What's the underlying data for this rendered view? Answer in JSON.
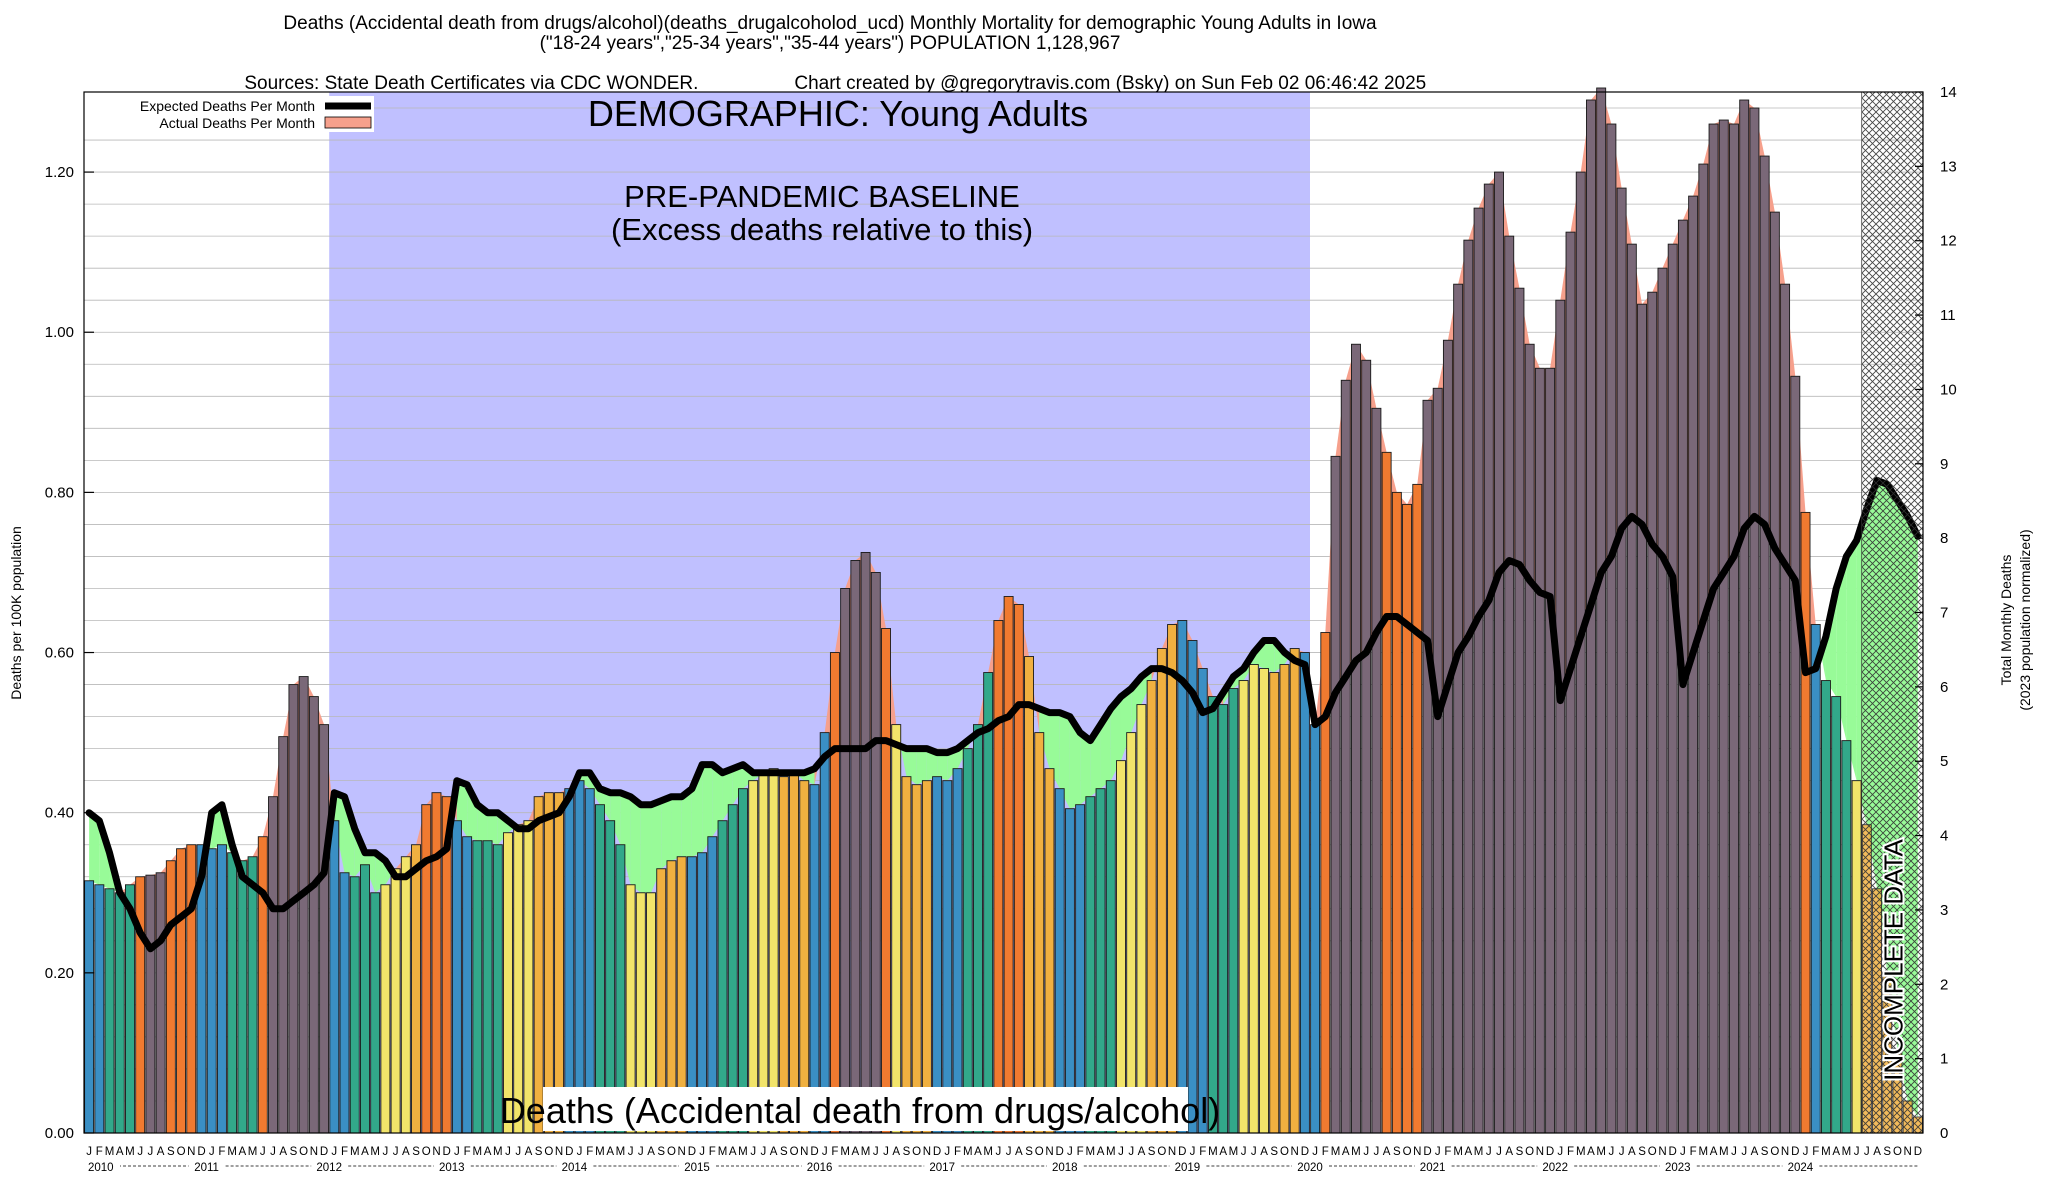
{
  "header": {
    "title": "Deaths (Accidental death from drugs/alcohol)(deaths_drugalcoholod_ucd) Monthly Mortality for demographic Young Adults in Iowa",
    "subtitle": "(\"18-24 years\",\"25-34 years\",\"35-44 years\") POPULATION 1,128,967",
    "sources": "Sources: State Death Certificates via CDC WONDER.",
    "credit": "Chart created by @gregorytravis.com (Bsky) on Sun Feb 02 06:46:42 2025"
  },
  "colors": {
    "baseline_band": "#c0c0ff",
    "excess_fill": "#f6a08c",
    "deficit_fill": "#98fb98",
    "expected_line": "#000000",
    "bar_winter": "#3a8fc4",
    "bar_spring": "#32a88a",
    "bar_summer": "#f2e46a",
    "bar_fall": "#f0b040",
    "bar_high": "#f07a30",
    "bar_peak": "#7a6878"
  },
  "chart_data": {
    "type": "bar",
    "title": "Deaths (Accidental death from drugs/alcohol)(deaths_drugalcoholod_ucd) Monthly Mortality for demographic Young Adults in Iowa",
    "ylabel": "Deaths per 100K population",
    "ylabel_right": "Total Monthly Deaths",
    "ylabel_right_sub": "(2023 population normalized)",
    "ylim": [
      0,
      1.3
    ],
    "ylim_right": [
      0,
      14
    ],
    "y_ticks": [
      "0.00",
      "0.20",
      "0.40",
      "0.60",
      "0.80",
      "1.00",
      "1.20"
    ],
    "y_ticks_right": [
      "0",
      "1",
      "2",
      "3",
      "4",
      "5",
      "6",
      "7",
      "8",
      "9",
      "10",
      "11",
      "12",
      "13",
      "14"
    ],
    "grid": true,
    "legend_position": "top-left",
    "legend": [
      "Expected Deaths Per Month",
      "Actual Deaths Per Month"
    ],
    "month_letters": [
      "J",
      "F",
      "M",
      "A",
      "M",
      "J",
      "J",
      "A",
      "S",
      "O",
      "N",
      "D"
    ],
    "years": [
      "2010",
      "2011",
      "2012",
      "2013",
      "2014",
      "2015",
      "2016",
      "2017",
      "2018",
      "2019",
      "2020",
      "2021",
      "2022",
      "2023",
      "2024"
    ],
    "start": "2010-01",
    "baseline_period": [
      "2012-01",
      "2019-12"
    ],
    "incomplete_period": [
      "2024-07",
      "2024-12"
    ],
    "annotations": {
      "demographic": "DEMOGRAPHIC: Young Adults",
      "baseline_line1": "PRE-PANDEMIC BASELINE",
      "baseline_line2": "(Excess deaths relative to this)",
      "incomplete": "INCOMPLETE DATA",
      "bottom_label": "Deaths (Accidental death from drugs/alcohol)"
    },
    "series": [
      {
        "name": "Actual Deaths Per Month",
        "values": [
          0.315,
          0.31,
          0.305,
          0.3,
          0.31,
          0.32,
          0.322,
          0.325,
          0.34,
          0.355,
          0.36,
          0.36,
          0.355,
          0.36,
          0.35,
          0.34,
          0.345,
          0.37,
          0.42,
          0.495,
          0.56,
          0.57,
          0.545,
          0.51,
          0.39,
          0.325,
          0.32,
          0.335,
          0.3,
          0.31,
          0.33,
          0.345,
          0.36,
          0.41,
          0.425,
          0.42,
          0.39,
          0.37,
          0.365,
          0.365,
          0.36,
          0.375,
          0.385,
          0.39,
          0.42,
          0.425,
          0.425,
          0.43,
          0.44,
          0.43,
          0.41,
          0.39,
          0.36,
          0.31,
          0.3,
          0.3,
          0.33,
          0.34,
          0.345,
          0.345,
          0.35,
          0.37,
          0.39,
          0.41,
          0.43,
          0.44,
          0.45,
          0.455,
          0.445,
          0.45,
          0.44,
          0.435,
          0.5,
          0.6,
          0.68,
          0.715,
          0.725,
          0.7,
          0.63,
          0.51,
          0.445,
          0.435,
          0.44,
          0.445,
          0.44,
          0.455,
          0.48,
          0.51,
          0.575,
          0.64,
          0.67,
          0.66,
          0.595,
          0.5,
          0.455,
          0.43,
          0.405,
          0.41,
          0.42,
          0.43,
          0.44,
          0.465,
          0.5,
          0.535,
          0.565,
          0.605,
          0.635,
          0.64,
          0.615,
          0.58,
          0.545,
          0.535,
          0.555,
          0.565,
          0.585,
          0.58,
          0.575,
          0.585,
          0.605,
          0.6,
          0.51,
          0.625,
          0.845,
          0.94,
          0.985,
          0.965,
          0.905,
          0.85,
          0.8,
          0.785,
          0.81,
          0.915,
          0.93,
          0.99,
          1.06,
          1.115,
          1.155,
          1.185,
          1.2,
          1.12,
          1.055,
          0.985,
          0.955,
          0.955,
          1.04,
          1.125,
          1.2,
          1.29,
          1.305,
          1.26,
          1.18,
          1.11,
          1.035,
          1.05,
          1.08,
          1.11,
          1.14,
          1.17,
          1.21,
          1.26,
          1.265,
          1.26,
          1.29,
          1.28,
          1.22,
          1.15,
          1.06,
          0.945,
          0.775,
          0.635,
          0.565,
          0.545,
          0.49,
          0.44,
          0.385,
          0.305,
          0.2,
          0.105,
          0.04,
          0.02
        ]
      },
      {
        "name": "Expected Deaths Per Month",
        "values": [
          0.4,
          0.39,
          0.35,
          0.3,
          0.28,
          0.25,
          0.23,
          0.24,
          0.26,
          0.27,
          0.28,
          0.32,
          0.4,
          0.41,
          0.36,
          0.32,
          0.31,
          0.3,
          0.28,
          0.28,
          0.29,
          0.3,
          0.31,
          0.325,
          0.425,
          0.42,
          0.38,
          0.35,
          0.35,
          0.34,
          0.32,
          0.32,
          0.33,
          0.34,
          0.345,
          0.355,
          0.44,
          0.435,
          0.41,
          0.4,
          0.4,
          0.39,
          0.38,
          0.38,
          0.39,
          0.395,
          0.4,
          0.42,
          0.45,
          0.45,
          0.43,
          0.425,
          0.425,
          0.42,
          0.41,
          0.41,
          0.415,
          0.42,
          0.42,
          0.43,
          0.46,
          0.46,
          0.45,
          0.455,
          0.46,
          0.45,
          0.45,
          0.45,
          0.45,
          0.45,
          0.45,
          0.455,
          0.47,
          0.48,
          0.48,
          0.48,
          0.48,
          0.49,
          0.49,
          0.485,
          0.48,
          0.48,
          0.48,
          0.475,
          0.475,
          0.48,
          0.49,
          0.5,
          0.505,
          0.515,
          0.52,
          0.535,
          0.535,
          0.53,
          0.525,
          0.525,
          0.52,
          0.5,
          0.49,
          0.51,
          0.53,
          0.545,
          0.555,
          0.57,
          0.58,
          0.58,
          0.575,
          0.565,
          0.55,
          0.525,
          0.53,
          0.55,
          0.57,
          0.58,
          0.6,
          0.615,
          0.615,
          0.6,
          0.59,
          0.585,
          0.51,
          0.52,
          0.55,
          0.57,
          0.59,
          0.6,
          0.625,
          0.645,
          0.645,
          0.635,
          0.625,
          0.615,
          0.52,
          0.56,
          0.6,
          0.62,
          0.645,
          0.665,
          0.7,
          0.715,
          0.71,
          0.69,
          0.675,
          0.67,
          0.54,
          0.58,
          0.62,
          0.66,
          0.7,
          0.72,
          0.755,
          0.77,
          0.76,
          0.735,
          0.72,
          0.695,
          0.56,
          0.6,
          0.64,
          0.68,
          0.7,
          0.72,
          0.755,
          0.77,
          0.76,
          0.73,
          0.71,
          0.69,
          0.575,
          0.58,
          0.62,
          0.68,
          0.72,
          0.74,
          0.78,
          0.815,
          0.81,
          0.79,
          0.77,
          0.745
        ]
      }
    ]
  }
}
